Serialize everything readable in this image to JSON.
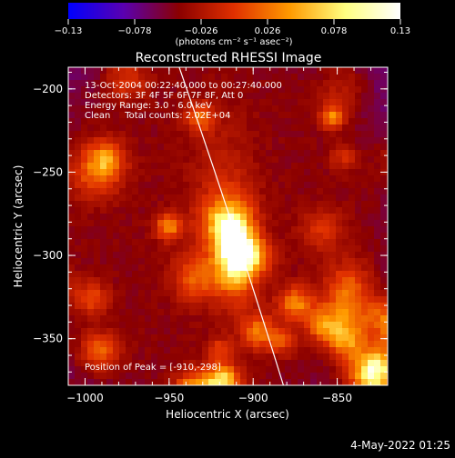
{
  "chart_data": {
    "type": "heatmap",
    "title": "Reconstructed RHESSI Image",
    "xlabel": "Heliocentric X (arcsec)",
    "ylabel": "Heliocentric Y (arcsec)",
    "xlim": [
      -1010,
      -820
    ],
    "ylim": [
      -378,
      -187
    ],
    "x_ticks": [
      -1000,
      -950,
      -900,
      -850
    ],
    "x_tick_labels": [
      "−1000",
      "−950",
      "−900",
      "−850"
    ],
    "y_ticks": [
      -200,
      -250,
      -300,
      -350
    ],
    "y_tick_labels": [
      "−200",
      "−250",
      "−300",
      "−350"
    ],
    "colorbar": {
      "range": [
        -0.13,
        0.13
      ],
      "ticks": [
        -0.13,
        -0.078,
        -0.026,
        0.026,
        0.078,
        0.13
      ],
      "tick_labels": [
        "−0.13",
        "−0.078",
        "−0.026",
        "0.026",
        "0.078",
        "0.13"
      ],
      "unit_label": "(photons cm⁻² s⁻¹ asec⁻²)",
      "colors": [
        "#0000ff",
        "#5a00b0",
        "#8b0000",
        "#e03000",
        "#ff9a00",
        "#ffff80",
        "#ffffff"
      ]
    },
    "annotations": [
      "13-Oct-2004 00:22:40.000 to 00:27:40.000",
      "Detectors: 3F 4F 5F 6F 7F 8F, Att 0",
      "Energy Range: 3.0 - 6.0 keV",
      "Clean     Total counts: 2.02E+04"
    ],
    "peak_label": "Position of Peak = [-910,-298]",
    "peak": {
      "x": -910,
      "y": -298,
      "value": 0.13
    },
    "limb_curve": [
      {
        "x": -944,
        "y": -187
      },
      {
        "x": -912,
        "y": -280
      },
      {
        "x": -882,
        "y": -378
      }
    ],
    "grid": false
  },
  "footer": {
    "timestamp": "4-May-2022 01:25"
  }
}
